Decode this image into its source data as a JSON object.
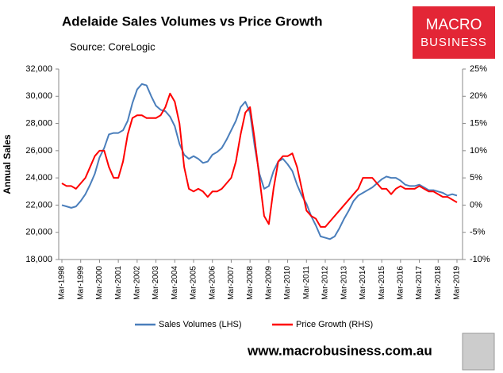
{
  "chart_data": {
    "type": "line",
    "title": "Adelaide Sales Volumes vs Price Growth",
    "subtitle": "Source: CoreLogic",
    "y_label": "Annual Sales",
    "logo": [
      "MACRO",
      "BUSINESS"
    ],
    "footer": "www.macrobusiness.com.au",
    "categories": [
      "Mar-1998",
      null,
      null,
      null,
      "Mar-1999",
      null,
      null,
      null,
      "Mar-2000",
      null,
      null,
      null,
      "Mar-2001",
      null,
      null,
      null,
      "Mar-2002",
      null,
      null,
      null,
      "Mar-2003",
      null,
      null,
      null,
      "Mar-2004",
      null,
      null,
      null,
      "Mar-2005",
      null,
      null,
      null,
      "Mar-2006",
      null,
      null,
      null,
      "Mar-2007",
      null,
      null,
      null,
      "Mar-2008",
      null,
      null,
      null,
      "Mar-2009",
      null,
      null,
      null,
      "Mar-2010",
      null,
      null,
      null,
      "Mar-2011",
      null,
      null,
      null,
      "Mar-2012",
      null,
      null,
      null,
      "Mar-2013",
      null,
      null,
      null,
      "Mar-2014",
      null,
      null,
      null,
      "Mar-2015",
      null,
      null,
      null,
      "Mar-2016",
      null,
      null,
      null,
      "Mar-2017",
      null,
      null,
      null,
      "Mar-2018",
      null,
      null,
      null,
      "Mar-2019"
    ],
    "series": [
      {
        "name": "Sales Volumes (LHS)",
        "color": "#4a7ebb",
        "axis": "y",
        "values": [
          22000,
          21900,
          21800,
          21900,
          22300,
          22800,
          23500,
          24300,
          25500,
          26200,
          27200,
          27300,
          27300,
          27500,
          28200,
          29500,
          30500,
          30900,
          30800,
          30000,
          29300,
          29000,
          28900,
          28500,
          27800,
          26500,
          25700,
          25400,
          25600,
          25400,
          25100,
          25200,
          25700,
          25900,
          26200,
          26800,
          27500,
          28200,
          29200,
          29600,
          28800,
          26300,
          24300,
          23200,
          23400,
          24500,
          25200,
          25400,
          25000,
          24500,
          23500,
          22700,
          22100,
          21200,
          20500,
          19700,
          19600,
          19500,
          19700,
          20300,
          21000,
          21600,
          22300,
          22700,
          22900,
          23100,
          23300,
          23600,
          23900,
          24100,
          24000,
          24000,
          23800,
          23500,
          23400,
          23400,
          23500,
          23300,
          23100,
          23100,
          23000,
          22900,
          22700,
          22800,
          22700
        ]
      },
      {
        "name": "Price Growth (RHS)",
        "color": "#ff0000",
        "axis": "y2",
        "values": [
          4,
          3.5,
          3.5,
          3,
          4,
          5,
          7,
          9,
          10,
          10,
          7,
          5,
          5,
          8,
          13,
          16,
          16.5,
          16.5,
          16,
          16,
          16,
          16.5,
          18,
          20.5,
          19,
          15,
          7,
          3,
          2.5,
          3,
          2.5,
          1.5,
          2.5,
          2.5,
          3,
          4,
          5,
          8,
          13,
          17,
          18,
          12,
          5,
          -2,
          -3.5,
          3,
          8,
          9,
          9,
          9.5,
          7,
          3,
          -1,
          -2,
          -2.5,
          -4,
          -4,
          -3,
          -2,
          -1,
          0,
          1,
          2,
          3,
          5,
          5,
          5,
          4,
          3,
          3,
          2,
          3,
          3.5,
          3,
          3,
          3,
          3.5,
          3,
          2.5,
          2.5,
          2,
          1.5,
          1.5,
          1,
          0.5
        ]
      }
    ],
    "ylim": [
      18000,
      32000
    ],
    "yticks": [
      {
        "value": 18000,
        "label": "18,000"
      },
      {
        "value": 20000,
        "label": "20,000"
      },
      {
        "value": 22000,
        "label": "22,000"
      },
      {
        "value": 24000,
        "label": "24,000"
      },
      {
        "value": 26000,
        "label": "26,000"
      },
      {
        "value": 28000,
        "label": "28,000"
      },
      {
        "value": 30000,
        "label": "30,000"
      },
      {
        "value": 32000,
        "label": "32,000"
      }
    ],
    "y2lim": [
      -10,
      25
    ],
    "y2ticks": [
      {
        "value": -10,
        "label": "-10%"
      },
      {
        "value": -5,
        "label": "-5%"
      },
      {
        "value": 0,
        "label": "0%"
      },
      {
        "value": 5,
        "label": "5%"
      },
      {
        "value": 10,
        "label": "10%"
      },
      {
        "value": 15,
        "label": "15%"
      },
      {
        "value": 20,
        "label": "20%"
      },
      {
        "value": 25,
        "label": "25%"
      }
    ]
  }
}
